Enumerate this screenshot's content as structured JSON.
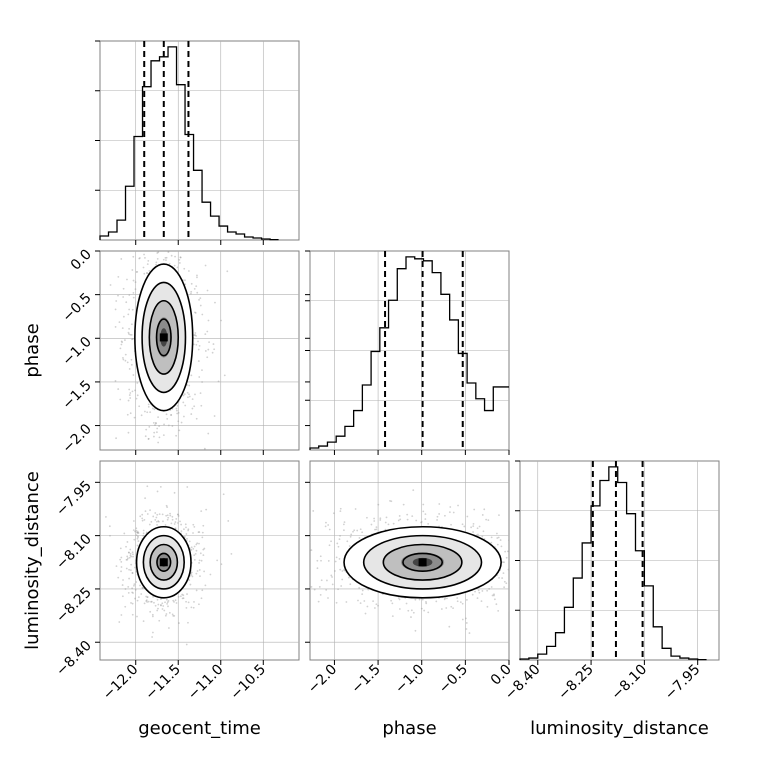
{
  "chart_data": {
    "type": "corner",
    "parameters": [
      "geocent_time",
      "phase",
      "luminosity_distance"
    ],
    "axis_labels": [
      "geocent_time",
      "phase",
      "luminosity_distance"
    ],
    "ranges": {
      "geocent_time": [
        -12.42,
        -10.08
      ],
      "phase": [
        -2.28,
        0.0
      ],
      "luminosity_distance": [
        -8.45,
        -7.89
      ]
    },
    "tick_labels": {
      "geocent_time": [
        "−12.0",
        "−11.5",
        "−11.0",
        "−10.5"
      ],
      "phase": [
        "−2.0",
        "−1.5",
        "−1.0",
        "−0.5",
        "0.0"
      ],
      "luminosity_distance": [
        "−8.40",
        "−8.25",
        "−8.10",
        "−7.95"
      ]
    },
    "tick_values": {
      "geocent_time": [
        -12.0,
        -11.5,
        -11.0,
        -10.5
      ],
      "phase": [
        -2.0,
        -1.5,
        -1.0,
        -0.5,
        0.0
      ],
      "luminosity_distance": [
        -8.4,
        -8.25,
        -8.1,
        -7.95
      ]
    },
    "quantiles": {
      "geocent_time": [
        -11.9,
        -11.67,
        -11.38
      ],
      "phase": [
        -1.42,
        -0.99,
        -0.53
      ],
      "luminosity_distance": [
        -8.245,
        -8.18,
        -8.105
      ]
    },
    "histograms": {
      "geocent_time": {
        "edges": [
          -12.42,
          -12.32,
          -12.22,
          -12.12,
          -12.02,
          -11.92,
          -11.82,
          -11.72,
          -11.62,
          -11.52,
          -11.42,
          -11.32,
          -11.22,
          -11.12,
          -11.02,
          -10.92,
          -10.82,
          -10.72,
          -10.62,
          -10.52,
          -10.42,
          -10.32
        ],
        "counts": [
          2,
          4,
          10,
          27,
          52,
          77,
          90,
          92,
          97,
          78,
          53,
          35,
          19,
          12,
          7,
          4,
          3,
          1.5,
          1,
          0.5,
          0.2
        ]
      },
      "phase": {
        "edges": [
          -2.28,
          -2.18,
          -2.08,
          -1.98,
          -1.88,
          -1.78,
          -1.68,
          -1.58,
          -1.48,
          -1.38,
          -1.28,
          -1.18,
          -1.08,
          -0.98,
          -0.88,
          -0.78,
          -0.68,
          -0.58,
          -0.48,
          -0.38,
          -0.28,
          -0.18,
          -0.08,
          0.0
        ],
        "counts": [
          1,
          2,
          4,
          7,
          12,
          20,
          33,
          50,
          62,
          76,
          92,
          98,
          97,
          96,
          90,
          79,
          66,
          49,
          34,
          26,
          20,
          32,
          32
        ]
      },
      "luminosity_distance": {
        "edges": [
          -8.45,
          -8.425,
          -8.4,
          -8.375,
          -8.35,
          -8.325,
          -8.3,
          -8.275,
          -8.25,
          -8.225,
          -8.2,
          -8.175,
          -8.15,
          -8.125,
          -8.1,
          -8.075,
          -8.05,
          -8.025,
          -8.0,
          -7.975,
          -7.95,
          -7.925
        ],
        "counts": [
          0.5,
          1,
          3,
          7,
          14,
          27,
          42,
          60,
          79,
          92,
          99,
          91,
          75,
          56,
          38,
          17,
          6,
          2,
          1,
          0.5,
          0.2
        ]
      }
    },
    "density_peaks": {
      "geocent_time_vs_phase": {
        "x": -11.67,
        "y": -0.99,
        "sx": 0.17,
        "sy": 0.42
      },
      "geocent_time_vs_luminosity_distance": {
        "x": -11.67,
        "y": -8.175,
        "sx": 0.16,
        "sy": 0.05
      },
      "phase_vs_luminosity_distance": {
        "x": -0.99,
        "y": -8.175,
        "sx": 0.45,
        "sy": 0.05
      }
    },
    "grid": true,
    "colors": {
      "line": "#000000",
      "grid": "#b0b0b0",
      "scatter": "#9a9a9a",
      "frame": "#808080"
    }
  }
}
